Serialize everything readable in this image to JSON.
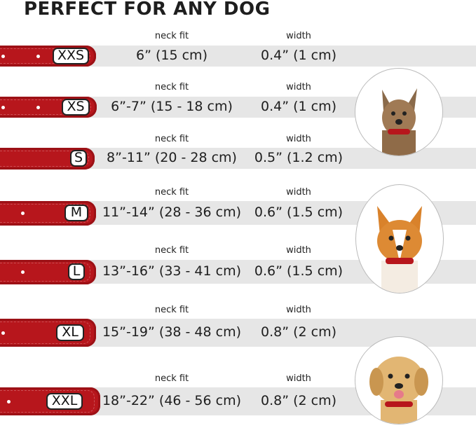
{
  "title": "PERFECT FOR ANY DOG",
  "column_labels": {
    "neck": "neck fit",
    "width": "width"
  },
  "colors": {
    "collar": "#b7161c",
    "band": "#e6e6e6"
  },
  "sizes": [
    {
      "size": "XXS",
      "neck_fit": "6” (15 cm)",
      "width": "0.4” (1 cm)"
    },
    {
      "size": "XS",
      "neck_fit": "6”-7” (15 - 18 cm)",
      "width": "0.4” (1 cm)"
    },
    {
      "size": "S",
      "neck_fit": "8”-11” (20 - 28 cm)",
      "width": "0.5” (1.2 cm)"
    },
    {
      "size": "M",
      "neck_fit": "11”-14” (28 - 36 cm)",
      "width": "0.6” (1.5 cm)"
    },
    {
      "size": "L",
      "neck_fit": "13”-16” (33 - 41 cm)",
      "width": "0.6” (1.5 cm)"
    },
    {
      "size": "XL",
      "neck_fit": "15”-19” (38 - 48 cm)",
      "width": "0.8” (2 cm)"
    },
    {
      "size": "XXL",
      "neck_fit": "18”-22” (46 - 56 cm)",
      "width": "0.8” (2 cm)"
    }
  ],
  "dog_images": [
    "small-terrier-dog-photo",
    "corgi-dog-photo",
    "labrador-dog-photo"
  ]
}
